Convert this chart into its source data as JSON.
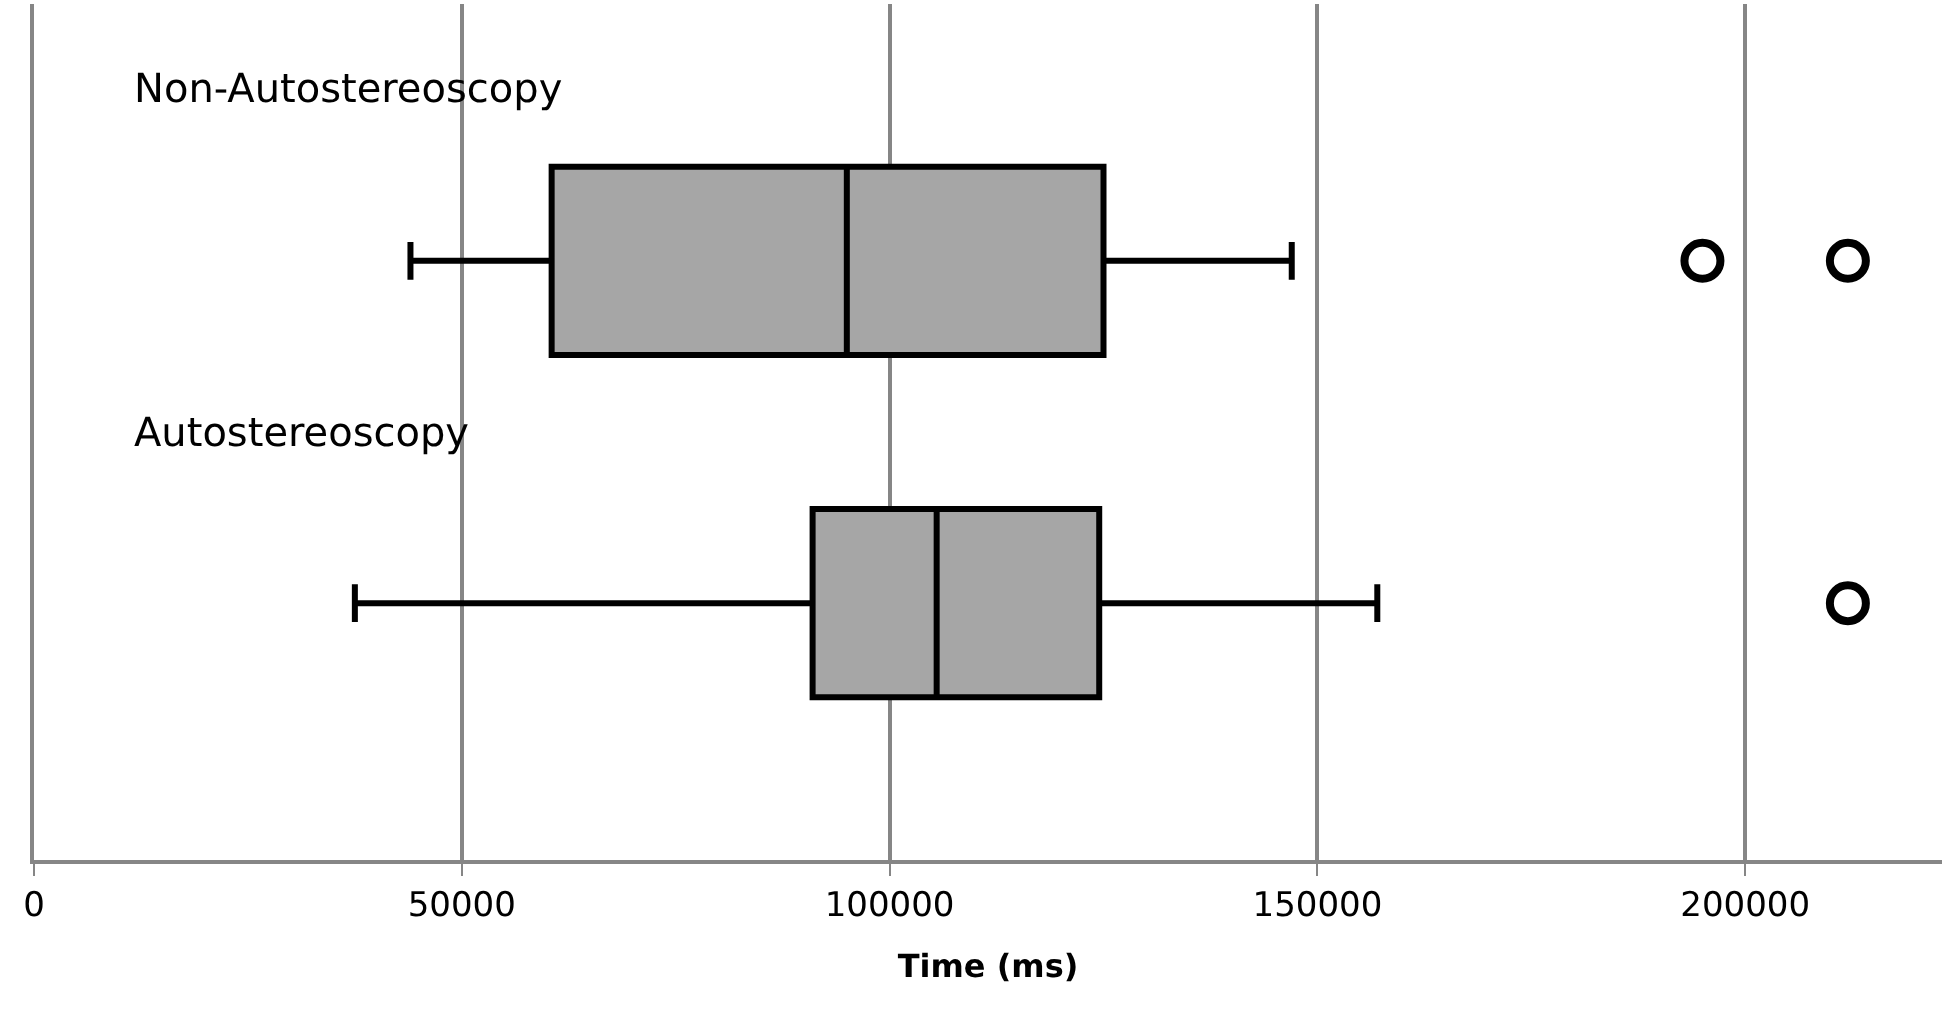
{
  "chart_data": {
    "type": "box",
    "orientation": "horizontal",
    "xlabel": "Time (ms)",
    "categories": [
      "Non-Autostereoscopy",
      "Autostereoscopy"
    ],
    "boxes": [
      {
        "low": 44000,
        "q1": 60500,
        "median": 95000,
        "q3": 125000,
        "high": 147000,
        "outliers": [
          195000,
          212000
        ]
      },
      {
        "low": 37500,
        "q1": 91000,
        "median": 105500,
        "q3": 124500,
        "high": 157000,
        "outliers": [
          212000
        ]
      }
    ],
    "color": "#a6a6a6",
    "xlim": [
      0,
      223000
    ],
    "xticks": [
      0,
      50000,
      100000,
      150000,
      200000
    ],
    "grid": "x"
  }
}
